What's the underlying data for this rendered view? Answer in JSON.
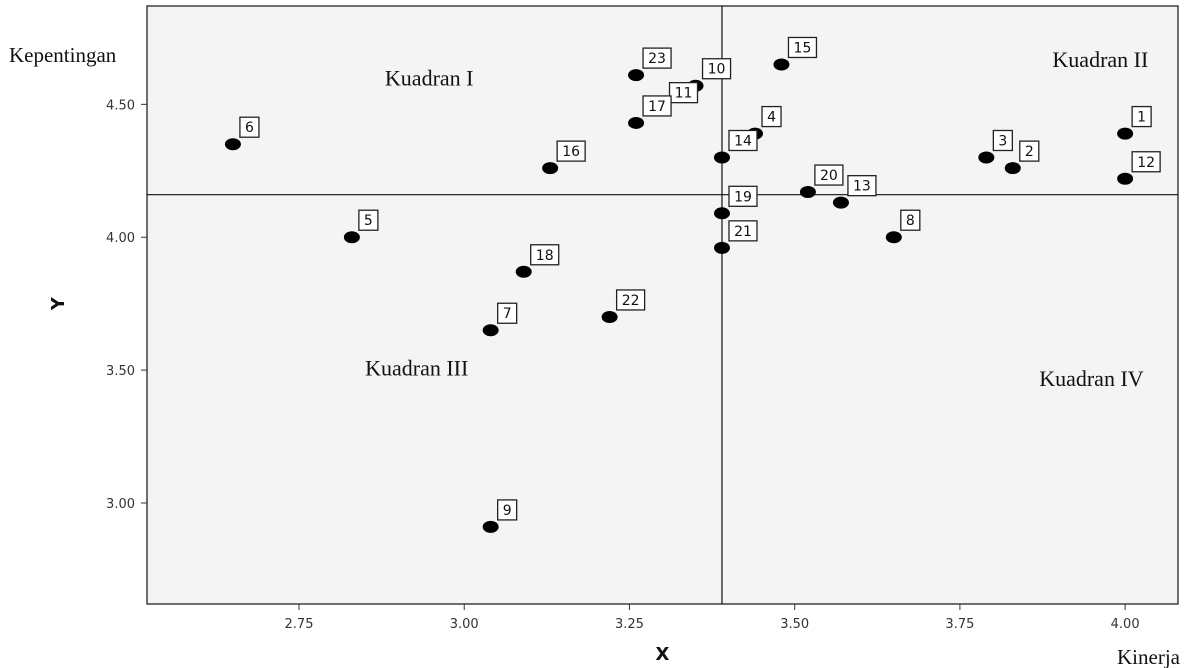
{
  "chart_data": {
    "type": "scatter",
    "xlabel": "X",
    "ylabel": "Y",
    "xlim": [
      2.52,
      4.08
    ],
    "ylim": [
      2.62,
      4.87
    ],
    "x_ticks": [
      2.75,
      3.0,
      3.25,
      3.5,
      3.75,
      4.0
    ],
    "y_ticks": [
      3.0,
      3.5,
      4.0,
      4.5
    ],
    "tick_format": 2,
    "grid": false,
    "divider": {
      "x": 3.39,
      "y": 4.16
    },
    "corner_labels": {
      "y_axis": "Kepentingan",
      "x_axis": "Kinerja"
    },
    "quadrants": [
      {
        "id": "I",
        "label": "Kuadran I",
        "x": 2.88,
        "y": 4.57
      },
      {
        "id": "II",
        "label": "Kuadran II",
        "x": 3.89,
        "y": 4.64
      },
      {
        "id": "III",
        "label": "Kuadran III",
        "x": 2.85,
        "y": 3.48
      },
      {
        "id": "IV",
        "label": "Kuadran IV",
        "x": 3.87,
        "y": 3.44
      }
    ],
    "points": [
      {
        "label": "1",
        "x": 4.0,
        "y": 4.39
      },
      {
        "label": "2",
        "x": 3.83,
        "y": 4.26
      },
      {
        "label": "3",
        "x": 3.79,
        "y": 4.3
      },
      {
        "label": "4",
        "x": 3.44,
        "y": 4.39
      },
      {
        "label": "5",
        "x": 2.83,
        "y": 4.0
      },
      {
        "label": "6",
        "x": 2.65,
        "y": 4.35
      },
      {
        "label": "7",
        "x": 3.04,
        "y": 3.65
      },
      {
        "label": "8",
        "x": 3.65,
        "y": 4.0
      },
      {
        "label": "9",
        "x": 3.04,
        "y": 2.91
      },
      {
        "label": "10",
        "x": 3.35,
        "y": 4.57
      },
      {
        "label": "11",
        "x": 3.3,
        "y": 4.48
      },
      {
        "label": "12",
        "x": 4.0,
        "y": 4.22
      },
      {
        "label": "13",
        "x": 3.57,
        "y": 4.13
      },
      {
        "label": "14",
        "x": 3.39,
        "y": 4.3
      },
      {
        "label": "15",
        "x": 3.48,
        "y": 4.65
      },
      {
        "label": "16",
        "x": 3.13,
        "y": 4.26
      },
      {
        "label": "17",
        "x": 3.26,
        "y": 4.43
      },
      {
        "label": "18",
        "x": 3.09,
        "y": 3.87
      },
      {
        "label": "19",
        "x": 3.39,
        "y": 4.09
      },
      {
        "label": "20",
        "x": 3.52,
        "y": 4.17
      },
      {
        "label": "21",
        "x": 3.39,
        "y": 3.96
      },
      {
        "label": "22",
        "x": 3.22,
        "y": 3.7
      },
      {
        "label": "23",
        "x": 3.26,
        "y": 4.61
      }
    ]
  }
}
